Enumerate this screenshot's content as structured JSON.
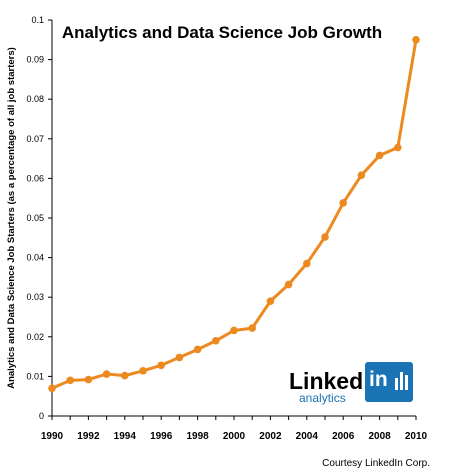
{
  "chart_data": {
    "type": "line",
    "title": "Analytics and Data Science Job Growth",
    "ylabel": "Analytics and Data Science Job Starters (as a percentage of all job starters)",
    "xlabel": "",
    "x": [
      1990,
      1991,
      1992,
      1993,
      1994,
      1995,
      1996,
      1997,
      1998,
      1999,
      2000,
      2001,
      2002,
      2003,
      2004,
      2005,
      2006,
      2007,
      2008,
      2009,
      2010
    ],
    "series": [
      {
        "values": [
          0.007,
          0.009,
          0.0092,
          0.0106,
          0.0102,
          0.0114,
          0.0128,
          0.0148,
          0.0168,
          0.019,
          0.0216,
          0.0222,
          0.029,
          0.0332,
          0.0385,
          0.0452,
          0.0538,
          0.0608,
          0.0658,
          0.0678,
          0.095
        ],
        "color": "#ec8a1f"
      }
    ],
    "xlim": [
      1990,
      2010
    ],
    "ylim": [
      0,
      0.1
    ],
    "x_ticks": [
      "1990",
      "1992",
      "1994",
      "1996",
      "1998",
      "2000",
      "2002",
      "2004",
      "2006",
      "2008",
      "2010"
    ],
    "y_ticks": [
      "0",
      "0.01",
      "0.02",
      "0.03",
      "0.04",
      "0.05",
      "0.06",
      "0.07",
      "0.08",
      "0.09",
      "0.1"
    ],
    "grid": false,
    "legend": "none"
  },
  "logo": {
    "word": "Linked",
    "in": "in",
    "sub": "analytics",
    "color": "#1a73b5"
  },
  "credit": "Courtesy LinkedIn Corp."
}
